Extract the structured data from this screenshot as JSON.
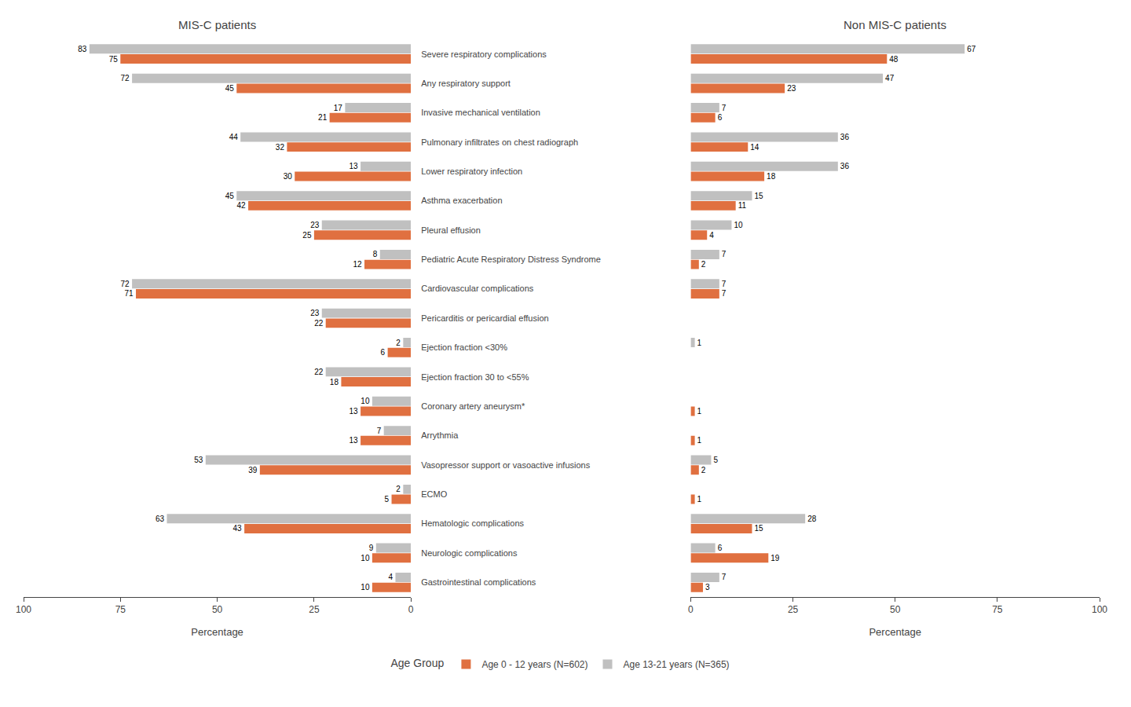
{
  "chart_data": [
    {
      "type": "bar",
      "orientation": "horizontal",
      "title": "MIS-C patients",
      "x_label": "Percentage",
      "categories": [
        "Severe respiratory complications",
        "Any respiratory support",
        "Invasive mechanical ventilation",
        "Pulmonary infiltrates on chest radiograph",
        "Lower respiratory infection",
        "Asthma exacerbation",
        "Pleural effusion",
        "Pediatric Acute Respiratory Distress Syndrome",
        "Cardiovascular complications",
        "Pericarditis or pericardial effusion",
        "Ejection fraction <30%",
        "Ejection fraction 30 to <55%",
        "Coronary artery aneurysm*",
        "Arrythmia",
        "Vasopressor support or vasoactive infusions",
        "ECMO",
        "Hematologic complications",
        "Neurologic complications",
        "Gastrointestinal complications"
      ],
      "series": [
        {
          "name": "Age 0 - 12 years (N=602)",
          "color": "#E07040",
          "values": [
            75,
            45,
            21,
            32,
            30,
            42,
            25,
            12,
            71,
            22,
            6,
            18,
            13,
            13,
            39,
            5,
            43,
            10,
            10
          ]
        },
        {
          "name": "Age 13-21 years (N=365)",
          "color": "#C0C0C0",
          "values": [
            83,
            72,
            17,
            44,
            13,
            45,
            23,
            8,
            72,
            23,
            2,
            22,
            10,
            7,
            53,
            2,
            63,
            9,
            4
          ]
        }
      ],
      "xlim": [
        100,
        0
      ],
      "xticks": [
        100,
        75,
        50,
        25,
        0
      ],
      "data_labels": true,
      "grid": false,
      "legend": "bottom",
      "legend_title": "Age Group"
    },
    {
      "type": "bar",
      "orientation": "horizontal",
      "title": "Non MIS-C patients",
      "x_label": "Percentage",
      "categories": [
        "Severe respiratory complications",
        "Any respiratory support",
        "Invasive mechanical ventilation",
        "Pulmonary infiltrates on chest radiograph",
        "Lower respiratory infection",
        "Asthma exacerbation",
        "Pleural effusion",
        "Pediatric Acute Respiratory Distress Syndrome",
        "Cardiovascular complications",
        "Pericarditis or pericardial effusion",
        "Ejection fraction <30%",
        "Ejection fraction 30 to <55%",
        "Coronary artery aneurysm*",
        "Arrythmia",
        "Vasopressor support or vasoactive infusions",
        "ECMO",
        "Hematologic complications",
        "Neurologic complications",
        "Gastrointestinal complications"
      ],
      "series": [
        {
          "name": "Age 0 - 12 years (N=602)",
          "color": "#E07040",
          "values": [
            48,
            23,
            6,
            14,
            18,
            11,
            4,
            2,
            7,
            0,
            0,
            0,
            1,
            1,
            2,
            1,
            15,
            19,
            3
          ],
          "value_labels": [
            "48",
            "23",
            "6",
            "14",
            "18",
            "11",
            "4",
            "2",
            "7",
            null,
            null,
            null,
            "1",
            "1",
            "2",
            "1",
            "15",
            "19",
            "3"
          ]
        },
        {
          "name": "Age 13-21 years (N=365)",
          "color": "#C0C0C0",
          "values": [
            67,
            47,
            7,
            36,
            36,
            15,
            10,
            7,
            7,
            0,
            1,
            0,
            0,
            0,
            5,
            0,
            28,
            6,
            7
          ],
          "value_labels": [
            "67",
            "47",
            "7",
            "36",
            "36",
            "15",
            "10",
            "7",
            "7",
            null,
            "1",
            null,
            null,
            null,
            "5",
            null,
            "28",
            "6",
            "7"
          ]
        }
      ],
      "xlim": [
        0,
        100
      ],
      "xticks": [
        0,
        25,
        50,
        75,
        100
      ],
      "data_labels": true,
      "grid": false,
      "tick_labels": "x"
    }
  ]
}
